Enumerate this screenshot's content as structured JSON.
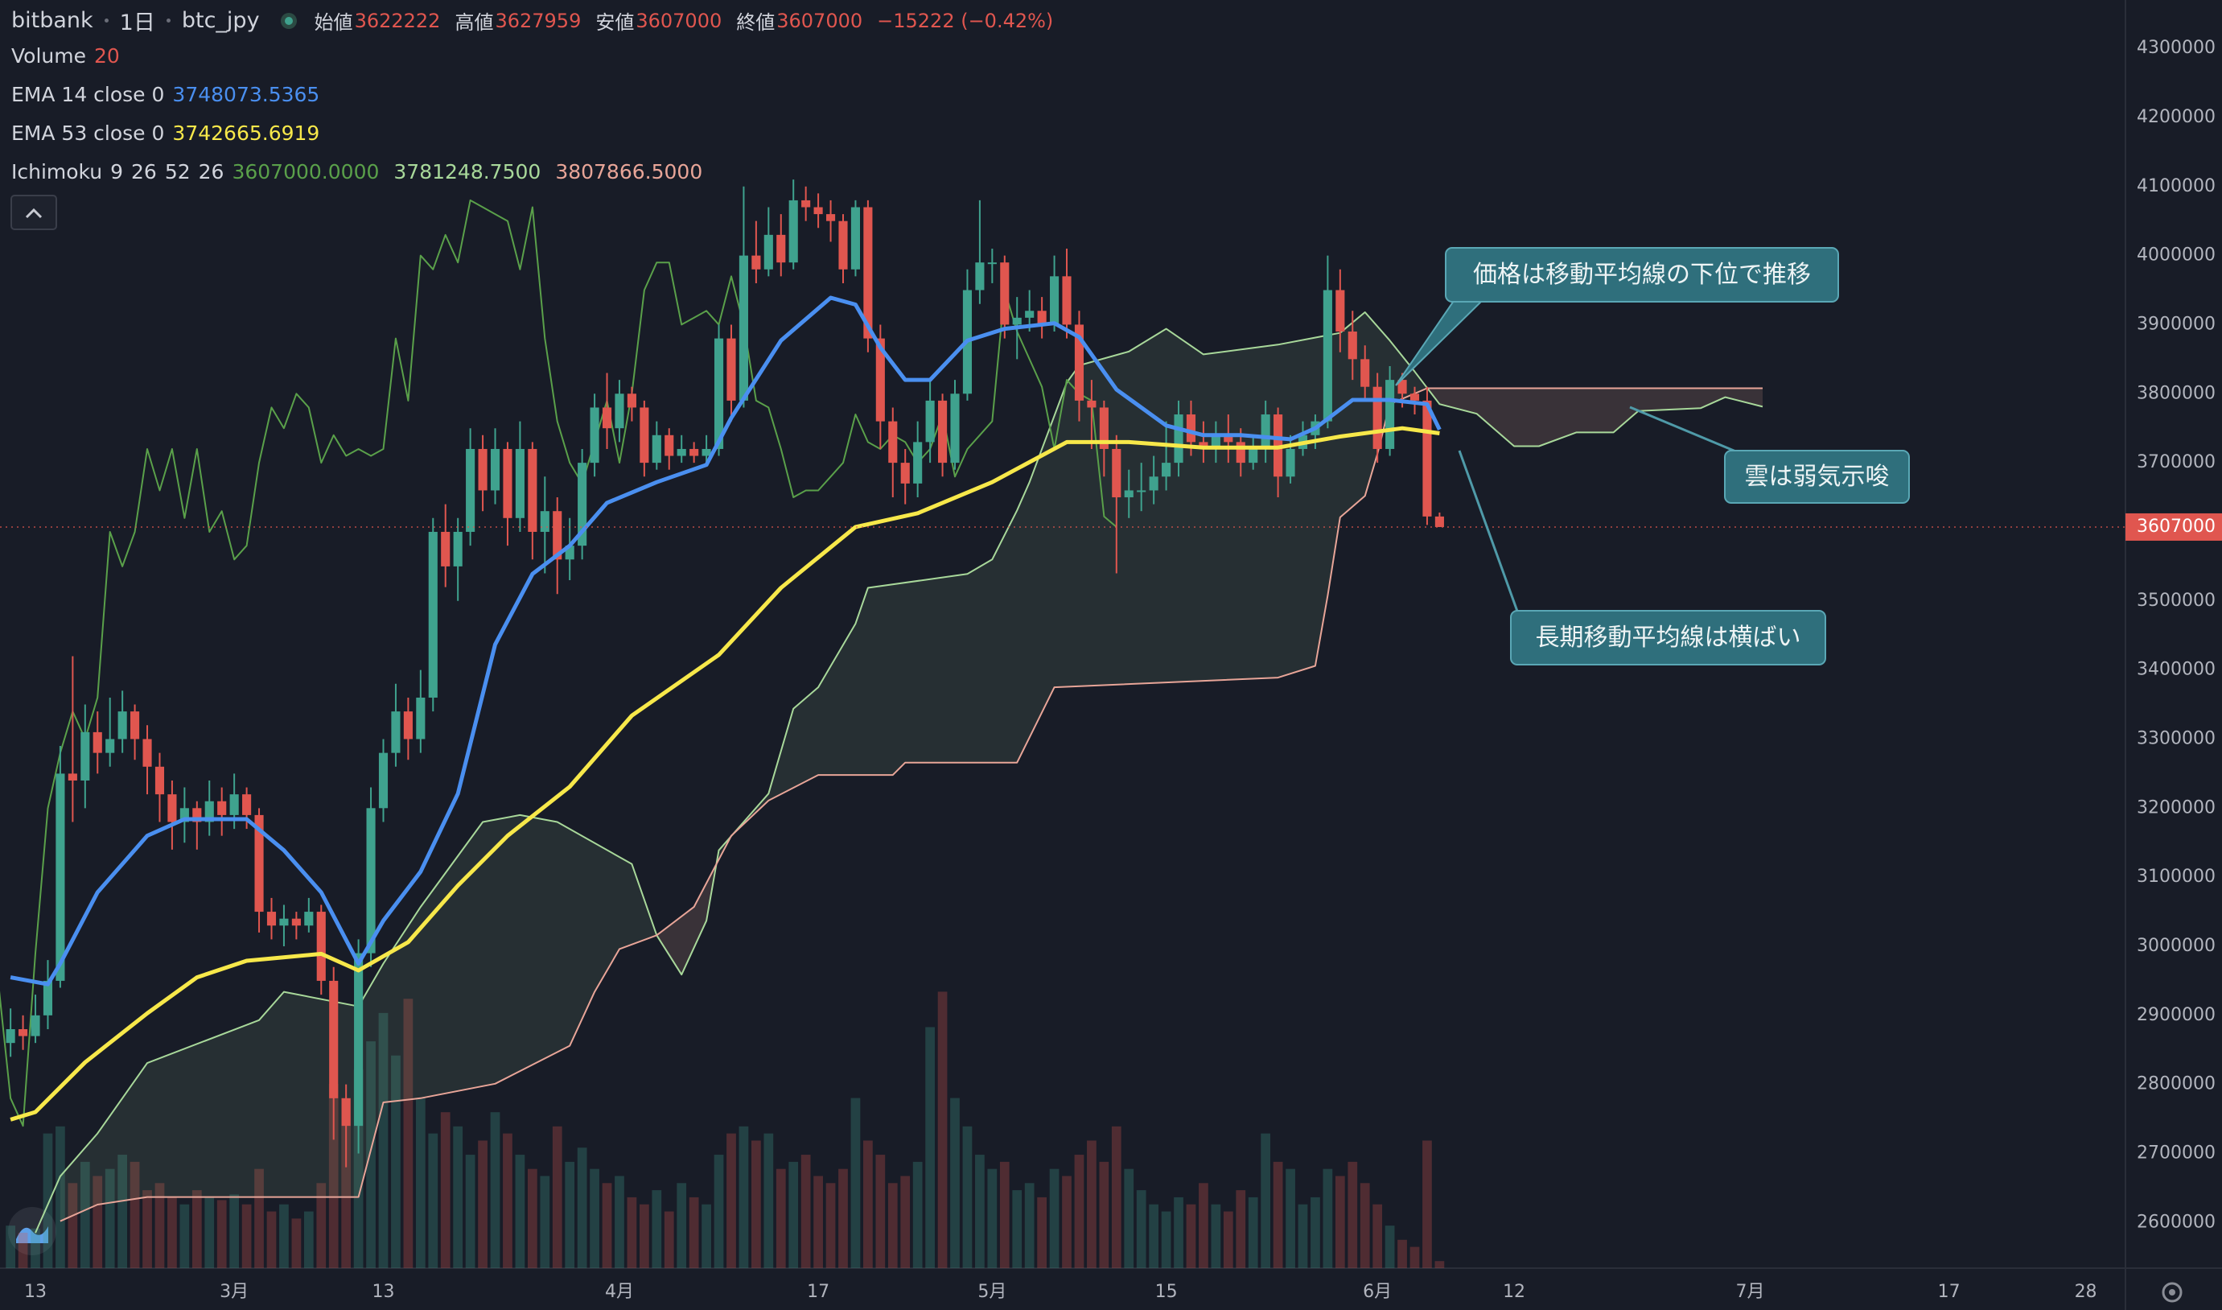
{
  "header": {
    "exchange": "bitbank",
    "interval": "1日",
    "symbol": "btc_jpy",
    "labels": [
      "始値",
      "高値",
      "安値",
      "終値"
    ],
    "change": "−15222 (−0.42%)"
  },
  "chart_data": {
    "type": "candlestick",
    "x": [
      -2,
      -1,
      0,
      1,
      2,
      3,
      4,
      5,
      6,
      7,
      8,
      9,
      10,
      11,
      12,
      13,
      14,
      15,
      16,
      17,
      18,
      19,
      20,
      21,
      22,
      23,
      24,
      25,
      26,
      27,
      28,
      29,
      30,
      31,
      32,
      33,
      34,
      35,
      36,
      37,
      38,
      39,
      40,
      41,
      42,
      43,
      44,
      45,
      46,
      47,
      48,
      49,
      50,
      51,
      52,
      53,
      54,
      55,
      56,
      57,
      58,
      59,
      60,
      61,
      62,
      63,
      64,
      65,
      66,
      67,
      68,
      69,
      70,
      71,
      72,
      73,
      74,
      75,
      76,
      77,
      78,
      79,
      80,
      81,
      82,
      83,
      84,
      85,
      86,
      87,
      88,
      89,
      90,
      91,
      92,
      93,
      94,
      95,
      96,
      97,
      98,
      99,
      100,
      101,
      102,
      103,
      104,
      105,
      106,
      107,
      108,
      109,
      110,
      111,
      112,
      113
    ],
    "ohlc": [
      [
        2860000,
        2910000,
        2840000,
        2880000
      ],
      [
        2880000,
        2900000,
        2850000,
        2870000
      ],
      [
        2870000,
        2930000,
        2860000,
        2900000
      ],
      [
        2900000,
        2980000,
        2880000,
        2950000
      ],
      [
        2950000,
        3290000,
        2940000,
        3250000
      ],
      [
        3250000,
        3420000,
        3180000,
        3240000
      ],
      [
        3240000,
        3350000,
        3200000,
        3310000
      ],
      [
        3310000,
        3340000,
        3250000,
        3280000
      ],
      [
        3280000,
        3360000,
        3260000,
        3300000
      ],
      [
        3300000,
        3370000,
        3280000,
        3340000
      ],
      [
        3340000,
        3350000,
        3270000,
        3300000
      ],
      [
        3300000,
        3320000,
        3220000,
        3260000
      ],
      [
        3260000,
        3280000,
        3180000,
        3220000
      ],
      [
        3220000,
        3240000,
        3140000,
        3180000
      ],
      [
        3180000,
        3230000,
        3150000,
        3200000
      ],
      [
        3200000,
        3210000,
        3140000,
        3180000
      ],
      [
        3180000,
        3240000,
        3160000,
        3210000
      ],
      [
        3210000,
        3230000,
        3160000,
        3190000
      ],
      [
        3190000,
        3250000,
        3170000,
        3220000
      ],
      [
        3220000,
        3230000,
        3170000,
        3190000
      ],
      [
        3190000,
        3200000,
        3020000,
        3050000
      ],
      [
        3050000,
        3070000,
        3010000,
        3030000
      ],
      [
        3030000,
        3060000,
        3000000,
        3040000
      ],
      [
        3040000,
        3050000,
        3010000,
        3030000
      ],
      [
        3030000,
        3070000,
        3020000,
        3050000
      ],
      [
        3050000,
        3060000,
        2930000,
        2950000
      ],
      [
        2950000,
        2970000,
        2720000,
        2780000
      ],
      [
        2780000,
        2800000,
        2680000,
        2740000
      ],
      [
        2740000,
        3010000,
        2700000,
        2990000
      ],
      [
        2990000,
        3230000,
        2970000,
        3200000
      ],
      [
        3200000,
        3300000,
        3180000,
        3280000
      ],
      [
        3280000,
        3380000,
        3260000,
        3340000
      ],
      [
        3340000,
        3360000,
        3270000,
        3300000
      ],
      [
        3300000,
        3400000,
        3280000,
        3360000
      ],
      [
        3360000,
        3620000,
        3340000,
        3600000
      ],
      [
        3600000,
        3640000,
        3520000,
        3550000
      ],
      [
        3550000,
        3620000,
        3500000,
        3600000
      ],
      [
        3600000,
        3750000,
        3580000,
        3720000
      ],
      [
        3720000,
        3740000,
        3630000,
        3660000
      ],
      [
        3660000,
        3750000,
        3640000,
        3720000
      ],
      [
        3720000,
        3730000,
        3580000,
        3620000
      ],
      [
        3620000,
        3760000,
        3600000,
        3720000
      ],
      [
        3720000,
        3730000,
        3560000,
        3600000
      ],
      [
        3600000,
        3680000,
        3540000,
        3630000
      ],
      [
        3630000,
        3650000,
        3510000,
        3560000
      ],
      [
        3560000,
        3620000,
        3530000,
        3580000
      ],
      [
        3580000,
        3720000,
        3560000,
        3700000
      ],
      [
        3700000,
        3800000,
        3680000,
        3780000
      ],
      [
        3780000,
        3830000,
        3720000,
        3750000
      ],
      [
        3750000,
        3820000,
        3730000,
        3800000
      ],
      [
        3800000,
        3810000,
        3760000,
        3780000
      ],
      [
        3780000,
        3790000,
        3680000,
        3700000
      ],
      [
        3700000,
        3760000,
        3690000,
        3740000
      ],
      [
        3740000,
        3750000,
        3690000,
        3710000
      ],
      [
        3710000,
        3740000,
        3700000,
        3720000
      ],
      [
        3720000,
        3730000,
        3700000,
        3710000
      ],
      [
        3710000,
        3740000,
        3700000,
        3720000
      ],
      [
        3720000,
        3900000,
        3710000,
        3880000
      ],
      [
        3880000,
        3900000,
        3760000,
        3790000
      ],
      [
        3790000,
        4100000,
        3780000,
        4000000
      ],
      [
        4000000,
        4050000,
        3960000,
        3980000
      ],
      [
        3980000,
        4070000,
        3970000,
        4030000
      ],
      [
        4030000,
        4060000,
        3970000,
        3990000
      ],
      [
        3990000,
        4110000,
        3980000,
        4080000
      ],
      [
        4080000,
        4100000,
        4050000,
        4070000
      ],
      [
        4070000,
        4090000,
        4040000,
        4060000
      ],
      [
        4060000,
        4080000,
        4020000,
        4050000
      ],
      [
        4050000,
        4060000,
        3960000,
        3980000
      ],
      [
        3980000,
        4080000,
        3970000,
        4070000
      ],
      [
        4070000,
        4080000,
        3860000,
        3880000
      ],
      [
        3880000,
        3900000,
        3720000,
        3760000
      ],
      [
        3760000,
        3780000,
        3650000,
        3700000
      ],
      [
        3700000,
        3720000,
        3640000,
        3670000
      ],
      [
        3670000,
        3760000,
        3650000,
        3730000
      ],
      [
        3730000,
        3820000,
        3700000,
        3790000
      ],
      [
        3790000,
        3800000,
        3680000,
        3700000
      ],
      [
        3700000,
        3820000,
        3690000,
        3800000
      ],
      [
        3800000,
        3980000,
        3790000,
        3950000
      ],
      [
        3950000,
        4080000,
        3930000,
        3990000
      ],
      [
        3990000,
        4010000,
        3960000,
        3990000
      ],
      [
        3990000,
        4000000,
        3880000,
        3900000
      ],
      [
        3900000,
        3940000,
        3850000,
        3910000
      ],
      [
        3910000,
        3950000,
        3890000,
        3920000
      ],
      [
        3920000,
        3940000,
        3880000,
        3900000
      ],
      [
        3900000,
        4000000,
        3890000,
        3970000
      ],
      [
        3970000,
        4010000,
        3880000,
        3900000
      ],
      [
        3900000,
        3920000,
        3760000,
        3790000
      ],
      [
        3790000,
        3820000,
        3720000,
        3780000
      ],
      [
        3780000,
        3790000,
        3680000,
        3720000
      ],
      [
        3720000,
        3740000,
        3540000,
        3650000
      ],
      [
        3650000,
        3690000,
        3620000,
        3660000
      ],
      [
        3660000,
        3700000,
        3630000,
        3660000
      ],
      [
        3660000,
        3710000,
        3640000,
        3680000
      ],
      [
        3680000,
        3760000,
        3660000,
        3700000
      ],
      [
        3700000,
        3790000,
        3680000,
        3770000
      ],
      [
        3770000,
        3790000,
        3710000,
        3730000
      ],
      [
        3730000,
        3760000,
        3700000,
        3720000
      ],
      [
        3720000,
        3760000,
        3700000,
        3740000
      ],
      [
        3740000,
        3770000,
        3700000,
        3730000
      ],
      [
        3730000,
        3750000,
        3680000,
        3700000
      ],
      [
        3700000,
        3740000,
        3690000,
        3720000
      ],
      [
        3720000,
        3790000,
        3700000,
        3770000
      ],
      [
        3770000,
        3780000,
        3650000,
        3680000
      ],
      [
        3680000,
        3740000,
        3670000,
        3720000
      ],
      [
        3720000,
        3760000,
        3710000,
        3740000
      ],
      [
        3740000,
        3770000,
        3720000,
        3760000
      ],
      [
        3760000,
        4000000,
        3750000,
        3950000
      ],
      [
        3950000,
        3980000,
        3860000,
        3890000
      ],
      [
        3890000,
        3920000,
        3820000,
        3850000
      ],
      [
        3850000,
        3870000,
        3790000,
        3810000
      ],
      [
        3810000,
        3830000,
        3700000,
        3720000
      ],
      [
        3720000,
        3840000,
        3710000,
        3820000
      ],
      [
        3820000,
        3830000,
        3780000,
        3800000
      ],
      [
        3800000,
        3810000,
        3770000,
        3790000
      ],
      [
        3790000,
        3810000,
        3610000,
        3622222
      ],
      [
        3622222,
        3627959,
        3607000,
        3607000
      ]
    ],
    "up_color": "#3fa28e",
    "down_color": "#e0564f",
    "volume": {
      "name": "Volume",
      "length": 20,
      "values": [
        30,
        25,
        28,
        95,
        100,
        60,
        75,
        65,
        70,
        80,
        75,
        55,
        60,
        50,
        45,
        55,
        50,
        48,
        52,
        45,
        70,
        40,
        45,
        35,
        40,
        60,
        130,
        120,
        140,
        160,
        180,
        150,
        190,
        120,
        95,
        110,
        100,
        80,
        90,
        110,
        95,
        80,
        70,
        65,
        100,
        75,
        85,
        70,
        60,
        65,
        50,
        45,
        55,
        40,
        60,
        50,
        45,
        80,
        95,
        100,
        90,
        95,
        70,
        75,
        80,
        65,
        60,
        70,
        120,
        90,
        80,
        60,
        65,
        75,
        170,
        195,
        120,
        100,
        80,
        70,
        75,
        55,
        60,
        50,
        70,
        65,
        80,
        90,
        75,
        100,
        70,
        55,
        45,
        40,
        50,
        45,
        60,
        45,
        40,
        55,
        50,
        95,
        75,
        70,
        45,
        50,
        70,
        65,
        75,
        60,
        45,
        30,
        20,
        15,
        90,
        5
      ]
    },
    "overlays": [
      {
        "name": "EMA 14 close 0",
        "color": "#4a8ff0",
        "x": [
          -2,
          1,
          2,
          5,
          9,
          12,
          17,
          20,
          23,
          26,
          28,
          31,
          34,
          37,
          40,
          43,
          46,
          50,
          54,
          56,
          60,
          64,
          66,
          68,
          70,
          72,
          75,
          78,
          82,
          84,
          87,
          91,
          94,
          97,
          101,
          103,
          106,
          109,
          112,
          113
        ],
        "values": [
          2955000,
          2945000,
          2975000,
          3078000,
          3160000,
          3184000,
          3184000,
          3139000,
          3078000,
          2975000,
          3037000,
          3108000,
          3221000,
          3437000,
          3539000,
          3580000,
          3642000,
          3672000,
          3697000,
          3765000,
          3877000,
          3939000,
          3929000,
          3867000,
          3820000,
          3820000,
          3877000,
          3894000,
          3902000,
          3882000,
          3806000,
          3754000,
          3740000,
          3740000,
          3734000,
          3750000,
          3791000,
          3791000,
          3785000,
          3748073.5365
        ]
      },
      {
        "name": "EMA 53 close 0",
        "color": "#f7e84a",
        "x": [
          -2,
          0,
          4,
          9,
          13,
          17,
          23,
          26,
          30,
          34,
          38,
          43,
          48,
          55,
          60,
          66,
          71,
          77,
          83,
          88,
          94,
          100,
          105,
          110,
          113
        ],
        "values": [
          2749000,
          2760000,
          2832000,
          2903000,
          2955000,
          2979000,
          2989000,
          2965000,
          3006000,
          3088000,
          3160000,
          3231000,
          3334000,
          3422000,
          3519000,
          3607000,
          3627000,
          3672000,
          3730000,
          3730000,
          3722000,
          3722000,
          3738000,
          3750000,
          3742665.6919
        ]
      }
    ],
    "ichimoku": {
      "name": "Ichimoku",
      "params": [
        9,
        26,
        52,
        26
      ],
      "lagging_color": "#5aa04a",
      "value_labels": [
        "3607000.0000",
        "3781248.7500",
        "3807866.5000"
      ],
      "span_a": {
        "color": "#a8d89a",
        "x": [
          0,
          2,
          5,
          9,
          18,
          20,
          26,
          28,
          31,
          36,
          39,
          42,
          48,
          50,
          52,
          54,
          55,
          59,
          61,
          63,
          66,
          67,
          75,
          77,
          79,
          80,
          83,
          84,
          88,
          91,
          94,
          100,
          105,
          107,
          109,
          111,
          113,
          116,
          119,
          121,
          124,
          127,
          129,
          134,
          136,
          139
        ],
        "values": [
          2585000,
          2667000,
          2729000,
          2831000,
          2893000,
          2934000,
          2913000,
          2975000,
          3057000,
          3180000,
          3190000,
          3180000,
          3119000,
          3016000,
          2959000,
          3037000,
          3139000,
          3221000,
          3344000,
          3375000,
          3467000,
          3519000,
          3539000,
          3560000,
          3631000,
          3672000,
          3816000,
          3841000,
          3861000,
          3894000,
          3857000,
          3871000,
          3888000,
          3918000,
          3877000,
          3832000,
          3785000,
          3771000,
          3724000,
          3724000,
          3744000,
          3744000,
          3775000,
          3779000,
          3795000,
          3781248.75
        ]
      },
      "span_b": {
        "color": "#e8a598",
        "x": [
          2,
          5,
          9,
          26,
          28,
          31,
          37,
          43,
          45,
          47,
          50,
          53,
          56,
          59,
          63,
          69,
          70,
          79,
          82,
          100,
          103,
          104,
          105,
          107,
          108,
          109,
          112,
          139
        ],
        "values": [
          2602000,
          2626000,
          2637000,
          2637000,
          2774000,
          2780000,
          2801000,
          2856000,
          2934000,
          2996000,
          3016000,
          3057000,
          3160000,
          3211000,
          3248000,
          3248000,
          3266000,
          3266000,
          3375000,
          3389000,
          3406000,
          3508000,
          3621000,
          3652000,
          3713000,
          3785000,
          3807866.5,
          3807866.5
        ]
      }
    },
    "annotations": [
      {
        "text": "価格は移動平均線の下位で推移"
      },
      {
        "text": "雲は弱気示唆"
      },
      {
        "text": "長期移動平均線は横ばい"
      }
    ],
    "xlim": [
      -2.85,
      168.2
    ],
    "xticks": [
      {
        "value": 0,
        "label": "13"
      },
      {
        "value": 16,
        "label": "3月"
      },
      {
        "value": 28,
        "label": "13"
      },
      {
        "value": 47,
        "label": "4月"
      },
      {
        "value": 63,
        "label": "17"
      },
      {
        "value": 77,
        "label": "5月"
      },
      {
        "value": 91,
        "label": "15"
      },
      {
        "value": 108,
        "label": "6月"
      },
      {
        "value": 119,
        "label": "12"
      },
      {
        "value": 138,
        "label": "7月"
      },
      {
        "value": 154,
        "label": "17"
      },
      {
        "value": 165,
        "label": "28"
      }
    ],
    "ylim": [
      2534000,
      4370000
    ],
    "yticks": [
      2600000,
      2700000,
      2800000,
      2900000,
      3000000,
      3100000,
      3200000,
      3300000,
      3400000,
      3500000,
      3600000,
      3700000,
      3800000,
      3900000,
      4000000,
      4100000,
      4200000,
      4300000
    ],
    "grid": false
  }
}
